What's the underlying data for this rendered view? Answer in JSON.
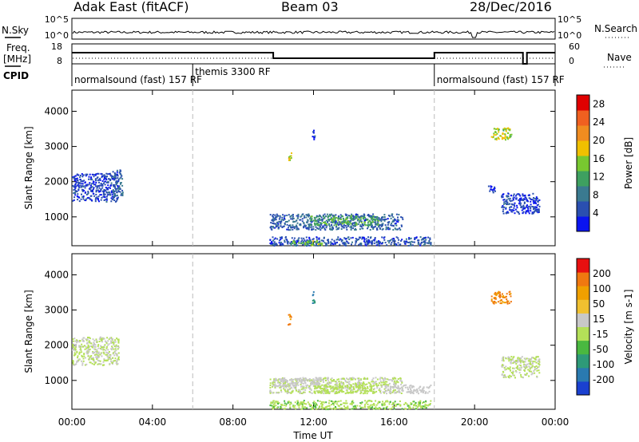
{
  "header": {
    "station": "Adak East (fitACF)",
    "beam": "Beam 03",
    "date": "28/Dec/2016"
  },
  "left_labels": {
    "nsky": "N.Sky",
    "freq_line1": "Freq.",
    "freq_line2": "[MHz]",
    "cpid": "CPID"
  },
  "right_labels": {
    "nsearch": "N.Search",
    "nave": "Nave"
  },
  "strip_ticks": {
    "noise_left": [
      "10^5",
      "10^0"
    ],
    "noise_right": [
      "10^5",
      "10^0"
    ],
    "freq_left": [
      "18",
      "8"
    ],
    "freq_right": [
      "60",
      "0"
    ]
  },
  "cpid_segments": [
    {
      "label": "normalsound (fast)  157 RF",
      "start": 0,
      "end": 6
    },
    {
      "label": "themis 3300 RF",
      "start": 6,
      "end": 18
    },
    {
      "label": "normalsound (fast)  157 RF",
      "start": 18,
      "end": 24
    }
  ],
  "time_axis": {
    "label": "Time UT",
    "ticks": [
      "00:00",
      "04:00",
      "08:00",
      "12:00",
      "16:00",
      "20:00",
      "00:00"
    ],
    "range": [
      0,
      24
    ]
  },
  "range_axis": {
    "label": "Slant Range [km]",
    "ticks": [
      "1000",
      "2000",
      "3000",
      "4000"
    ],
    "range": [
      180,
      4600
    ]
  },
  "chart_data": [
    {
      "type": "heatmap",
      "title": "Power",
      "xlabel": "Time UT",
      "ylabel": "Slant Range [km]",
      "colorbar": {
        "label": "Power [dB]",
        "ticks": [
          "4",
          "8",
          "12",
          "16",
          "20",
          "24",
          "28"
        ],
        "range": [
          0,
          30
        ],
        "colors": [
          "#0a14f0",
          "#2a4fb0",
          "#3a7a90",
          "#3ea060",
          "#78c830",
          "#f0c000",
          "#f08c20",
          "#f06020",
          "#e00000"
        ]
      },
      "regions": [
        {
          "t": [
            0.0,
            2.3
          ],
          "r": [
            1450,
            2250
          ],
          "value": 4
        },
        {
          "t": [
            2.0,
            2.5
          ],
          "r": [
            1600,
            2350
          ],
          "value": 6
        },
        {
          "t": [
            9.8,
            16.4
          ],
          "r": [
            650,
            1100
          ],
          "value": 6
        },
        {
          "t": [
            11.8,
            15.2
          ],
          "r": [
            780,
            1050
          ],
          "value": 12
        },
        {
          "t": [
            9.8,
            17.8
          ],
          "r": [
            200,
            450
          ],
          "value": 5
        },
        {
          "t": [
            10.8,
            12.4
          ],
          "r": [
            200,
            350
          ],
          "value": 14
        },
        {
          "t": [
            21.3,
            23.2
          ],
          "r": [
            1100,
            1700
          ],
          "value": 4
        },
        {
          "t": [
            20.6,
            21.0
          ],
          "r": [
            1700,
            1900
          ],
          "value": 4
        },
        {
          "t": [
            20.8,
            21.8
          ],
          "r": [
            3200,
            3550
          ],
          "value": 16
        },
        {
          "t": [
            11.9,
            12.05
          ],
          "r": [
            3200,
            3550
          ],
          "value": 4
        },
        {
          "t": [
            10.7,
            10.9
          ],
          "r": [
            2600,
            2900
          ],
          "value": 18
        }
      ]
    },
    {
      "type": "heatmap",
      "title": "Velocity",
      "xlabel": "Time UT",
      "ylabel": "Slant Range [km]",
      "colorbar": {
        "label": "Velocity [m s-1]",
        "ticks": [
          "200",
          "100",
          "50",
          "15",
          "-15",
          "-50",
          "-100",
          "-200"
        ],
        "range": [
          -250,
          250
        ],
        "colors": [
          "#1a40d0",
          "#2a7ab0",
          "#2e9a78",
          "#4ab840",
          "#b4e058",
          "#c8c8c8",
          "#f0c030",
          "#f0a000",
          "#f07810",
          "#e81010"
        ]
      },
      "regions": [
        {
          "t": [
            0.0,
            2.3
          ],
          "r": [
            1450,
            2250
          ],
          "value": 0
        },
        {
          "t": [
            9.8,
            16.4
          ],
          "r": [
            650,
            1100
          ],
          "value": 0
        },
        {
          "t": [
            10.0,
            12.4
          ],
          "r": [
            850,
            1100
          ],
          "value": 30
        },
        {
          "t": [
            12.0,
            15.0
          ],
          "r": [
            650,
            900
          ],
          "value": -30
        },
        {
          "t": [
            15.5,
            17.8
          ],
          "r": [
            650,
            900
          ],
          "value": 30
        },
        {
          "t": [
            9.8,
            17.8
          ],
          "r": [
            200,
            450
          ],
          "value": -40
        },
        {
          "t": [
            21.3,
            23.2
          ],
          "r": [
            1100,
            1700
          ],
          "value": 0
        },
        {
          "t": [
            20.8,
            21.8
          ],
          "r": [
            3200,
            3550
          ],
          "value": 150
        },
        {
          "t": [
            11.9,
            12.05
          ],
          "r": [
            3200,
            3550
          ],
          "value": -150
        },
        {
          "t": [
            10.7,
            10.9
          ],
          "r": [
            2600,
            2900
          ],
          "value": 150
        }
      ]
    }
  ]
}
